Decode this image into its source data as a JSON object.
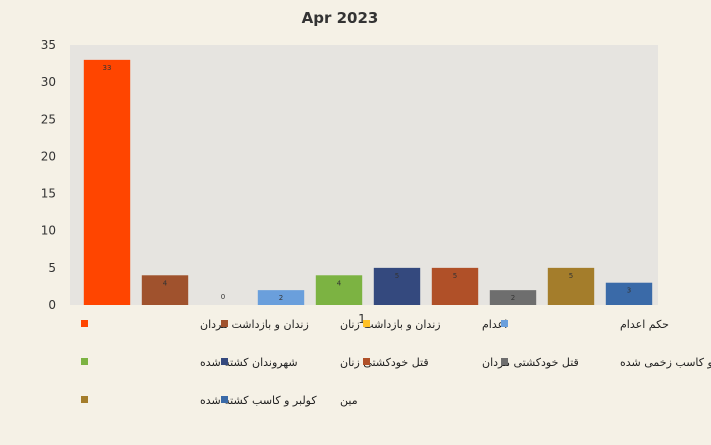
{
  "chart_data": {
    "type": "bar",
    "title": "Apr 2023",
    "categories": [
      "1"
    ],
    "ylim": [
      0,
      35
    ],
    "yticks": [
      0,
      5,
      10,
      15,
      20,
      25,
      30,
      35
    ],
    "grid": false,
    "legend_position": "bottom",
    "series": [
      {
        "name": "زندان و بازداشت مردان",
        "values": [
          33
        ],
        "color": "#ff4500"
      },
      {
        "name": "زندان و بازداشت زنان",
        "values": [
          4
        ],
        "color": "#a0522d"
      },
      {
        "name": "اعدام",
        "values": [
          0
        ],
        "color": "#ffc125"
      },
      {
        "name": "حکم اعدام",
        "values": [
          2
        ],
        "color": "#6a9fdc"
      },
      {
        "name": "شهروندان کشته شده",
        "values": [
          4
        ],
        "color": "#7cb342"
      },
      {
        "name": "قتل خودکشتی زنان",
        "values": [
          5
        ],
        "color": "#34497e"
      },
      {
        "name": "قتل خودکشتی مردان",
        "values": [
          5
        ],
        "color": "#b05028"
      },
      {
        "name": "کولبر و کاسب زخمی شده",
        "values": [
          2
        ],
        "color": "#6e6e6e"
      },
      {
        "name": "کولبر و کاسب کشته شده",
        "values": [
          5
        ],
        "color": "#a47d2b"
      },
      {
        "name": "مین",
        "values": [
          3
        ],
        "color": "#3a6aa8"
      }
    ]
  }
}
